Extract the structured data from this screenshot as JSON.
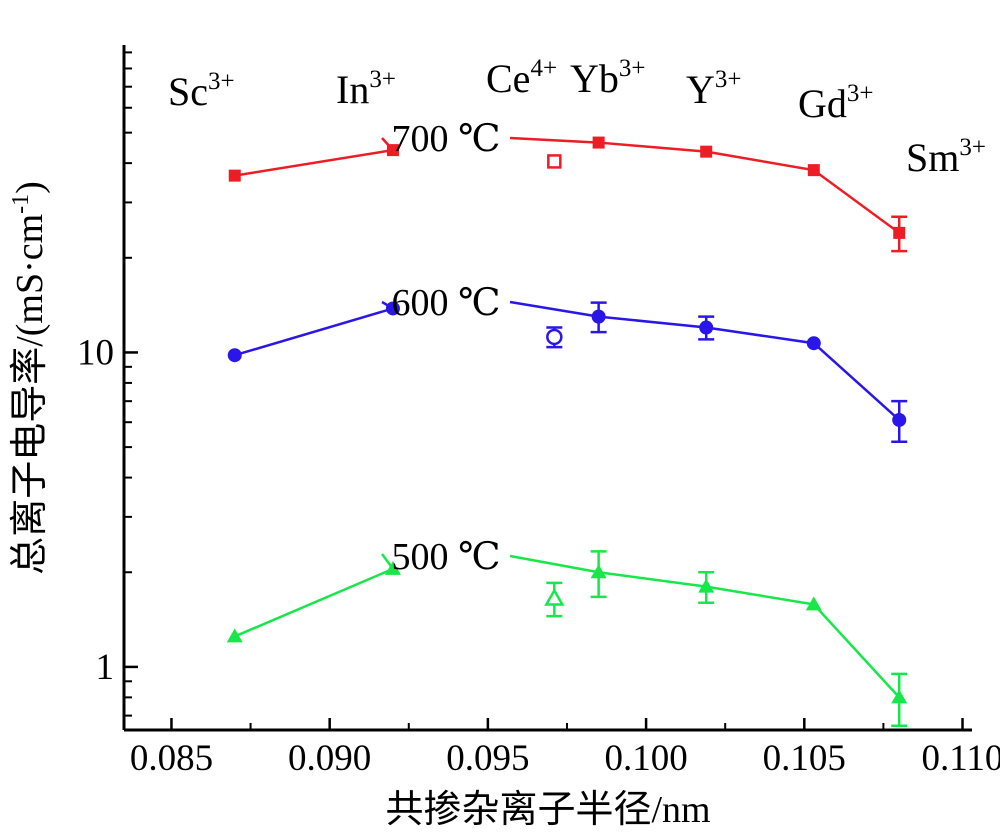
{
  "chart_data": {
    "type": "line",
    "xlabel": "共掺杂离子半径/nm",
    "ylabel": "总离子电导率/(mS·cm-1)",
    "xlim": [
      0.0835,
      0.1103
    ],
    "ylim": [
      0.63,
      95
    ],
    "y_scale": "log",
    "x_ticks": [
      "0.085",
      "0.090",
      "0.095",
      "0.100",
      "0.105",
      "0.110"
    ],
    "x_tick_values": [
      0.085,
      0.09,
      0.095,
      0.1,
      0.105,
      0.11
    ],
    "y_ticks": [
      "1",
      "10"
    ],
    "y_tick_values": [
      1,
      10
    ],
    "grid": false,
    "dopants": [
      {
        "base": "Sc",
        "charge": "3+",
        "x": 0.087
      },
      {
        "base": "In",
        "charge": "3+",
        "x": 0.092
      },
      {
        "base": "Ce",
        "charge": "4+",
        "x": 0.097
      },
      {
        "base": "Yb",
        "charge": "3+",
        "x": 0.0985
      },
      {
        "base": "Y",
        "charge": "3+",
        "x": 0.1019
      },
      {
        "base": "Gd",
        "charge": "3+",
        "x": 0.1053
      },
      {
        "base": "Sm",
        "charge": "3+",
        "x": 0.1079
      }
    ],
    "series": [
      {
        "name": "700 ℃",
        "color": "#ee1c24",
        "marker": "square",
        "x": [
          0.087,
          0.092,
          0.0985,
          0.1019,
          0.1053,
          0.108
        ],
        "y": [
          36.5,
          44.0,
          46.5,
          43.5,
          38.0,
          24.0
        ],
        "err": [
          0,
          0,
          0,
          0,
          0,
          3.0
        ],
        "open_point": {
          "x": 0.0971,
          "y": 40.5,
          "err": 0
        }
      },
      {
        "name": "600 ℃",
        "color": "#2a16e8",
        "marker": "circle",
        "x": [
          0.087,
          0.092,
          0.0985,
          0.1019,
          0.1053,
          0.108
        ],
        "y": [
          9.8,
          13.8,
          13.0,
          12.0,
          10.7,
          6.1
        ],
        "err": [
          0,
          0,
          1.4,
          1.0,
          0,
          0.9
        ],
        "open_point": {
          "x": 0.0971,
          "y": 11.2,
          "err": 0.8
        }
      },
      {
        "name": "500 ℃",
        "color": "#17e84a",
        "marker": "triangle",
        "x": [
          0.087,
          0.092,
          0.0985,
          0.1019,
          0.1053,
          0.108
        ],
        "y": [
          1.25,
          2.05,
          2.0,
          1.8,
          1.58,
          0.8
        ],
        "err": [
          0,
          0,
          0.33,
          0.2,
          0,
          0.15
        ],
        "open_point": {
          "x": 0.0971,
          "y": 1.65,
          "err": 0.2
        }
      }
    ]
  }
}
